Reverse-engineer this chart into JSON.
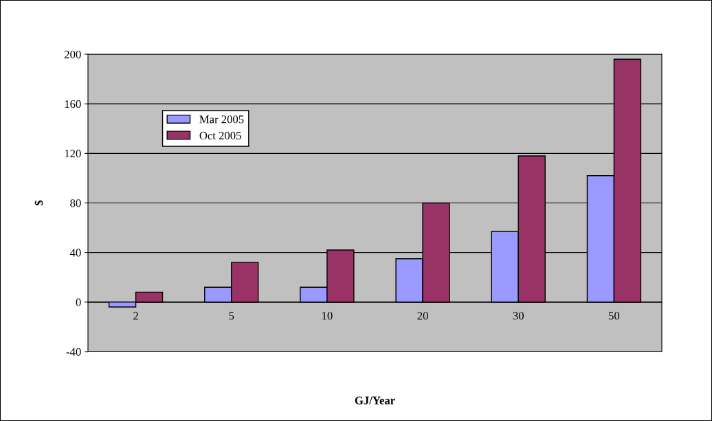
{
  "chart_data": {
    "type": "bar",
    "xlabel": "GJ/Year",
    "ylabel": "$",
    "categories": [
      "2",
      "5",
      "10",
      "20",
      "30",
      "50"
    ],
    "series": [
      {
        "name": "Mar 2005",
        "color": "#9999ff",
        "values": [
          -4,
          12,
          12,
          35,
          57,
          102
        ]
      },
      {
        "name": "Oct 2005",
        "color": "#993366",
        "values": [
          8,
          32,
          42,
          80,
          118,
          196
        ]
      }
    ],
    "ylim": [
      -40,
      200
    ],
    "yticks": [
      -40,
      0,
      40,
      80,
      120,
      160,
      200
    ],
    "grid": "y",
    "legend": "top left"
  }
}
